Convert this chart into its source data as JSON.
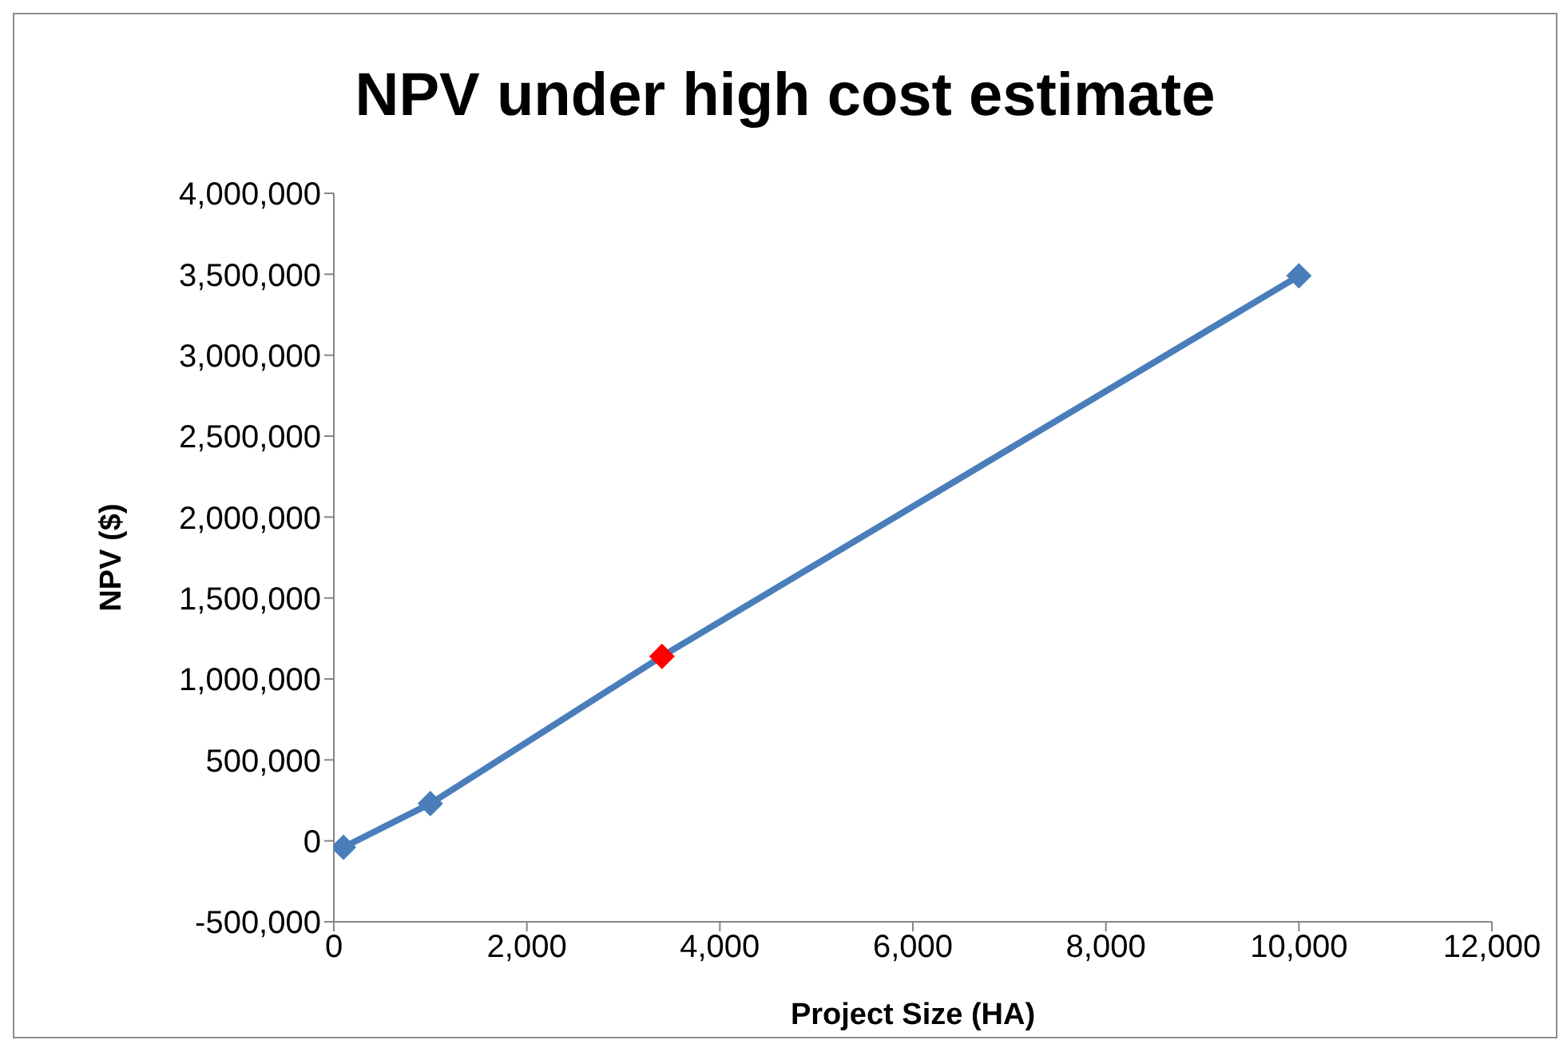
{
  "chart_data": {
    "type": "line",
    "title": "NPV under high cost estimate",
    "xlabel": "Project Size (HA)",
    "ylabel": "NPV ($)",
    "x": [
      100,
      1000,
      3400,
      10000
    ],
    "series": [
      {
        "color": "#4a7ebb",
        "colors": [
          "#4a7ebb",
          "#4a7ebb",
          "#ff0000",
          "#4a7ebb"
        ],
        "values": [
          -40000,
          230000,
          1140000,
          3490000
        ]
      }
    ],
    "xlim": [
      0,
      12000
    ],
    "xticks": [
      {
        "value": 0,
        "label": "0"
      },
      {
        "value": 2000,
        "label": "2,000"
      },
      {
        "value": 4000,
        "label": "4,000"
      },
      {
        "value": 6000,
        "label": "6,000"
      },
      {
        "value": 8000,
        "label": "8,000"
      },
      {
        "value": 10000,
        "label": "10,000"
      },
      {
        "value": 12000,
        "label": "12,000"
      }
    ],
    "ylim": [
      -500000,
      4000000
    ],
    "yticks": [
      {
        "value": -500000,
        "label": "-500,000"
      },
      {
        "value": 0,
        "label": "0"
      },
      {
        "value": 500000,
        "label": "500,000"
      },
      {
        "value": 1000000,
        "label": "1,000,000"
      },
      {
        "value": 1500000,
        "label": "1,500,000"
      },
      {
        "value": 2000000,
        "label": "2,000,000"
      },
      {
        "value": 2500000,
        "label": "2,500,000"
      },
      {
        "value": 3000000,
        "label": "3,000,000"
      },
      {
        "value": 3500000,
        "label": "3,500,000"
      },
      {
        "value": 4000000,
        "label": "4,000,000"
      }
    ],
    "grid": false,
    "legend": false,
    "marker": "diamond",
    "line_style": "solid"
  }
}
